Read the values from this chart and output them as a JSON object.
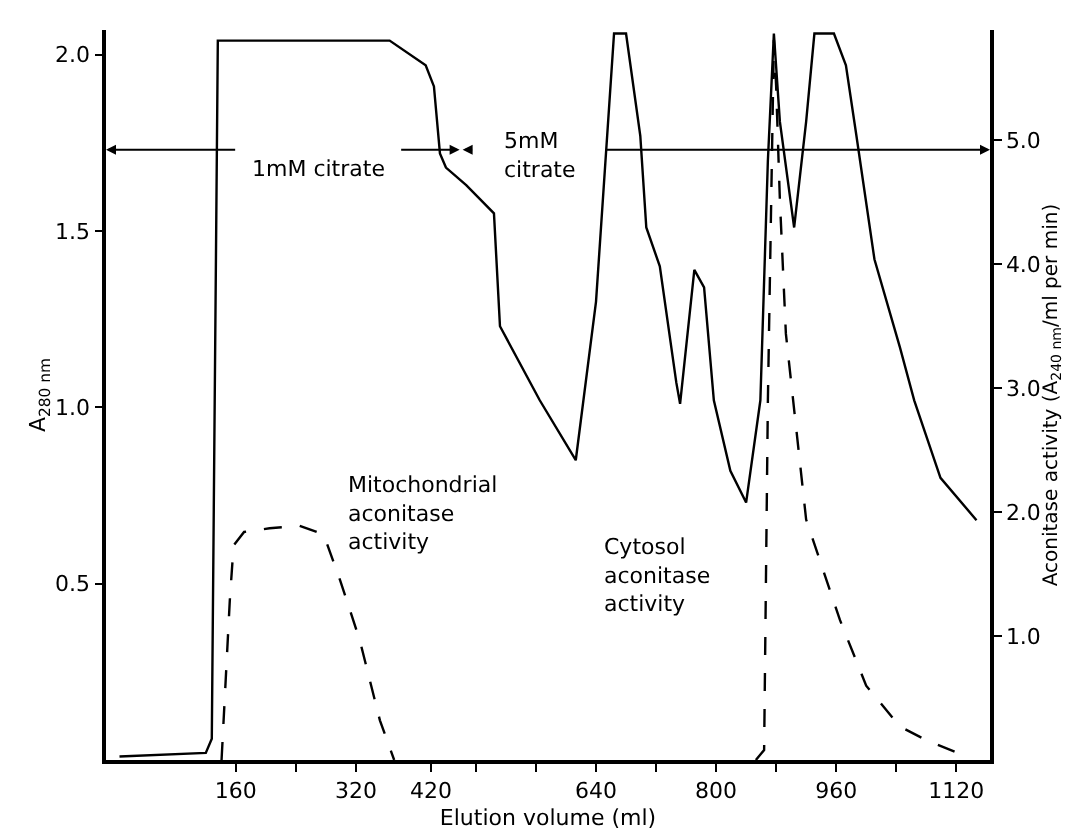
{
  "chart_data": {
    "type": "line",
    "xlabel": "Elution volume (ml)",
    "ylabel": "A$_{280 nm}$",
    "y2label": "Aconitase activity (A$_{240 nm}$/ml per min)",
    "xlim": [
      -13,
      1165
    ],
    "ylim": [
      0,
      2.07
    ],
    "y2lim": [
      0,
      5.89
    ],
    "xticks": [
      160,
      {
        "value": 240,
        "label": null
      },
      320,
      420,
      {
        "value": 480,
        "label": null
      },
      {
        "value": 560,
        "label": null
      },
      640,
      {
        "value": 720,
        "label": null
      },
      800,
      {
        "value": 880,
        "label": null
      },
      960,
      {
        "value": 1040,
        "label": null
      },
      1120
    ],
    "yticks": [
      0.5,
      {
        "value": 1,
        "label": "1.0"
      },
      1.5,
      {
        "value": 2,
        "label": "2.0"
      }
    ],
    "y2ticks": [
      {
        "value": 1,
        "label": "1.0"
      },
      {
        "value": 2,
        "label": "2.0"
      },
      {
        "value": 3,
        "label": "3.0"
      },
      {
        "value": 4,
        "label": "4.0"
      },
      {
        "value": 5,
        "label": "5.0"
      }
    ],
    "marker": "none",
    "series": [
      {
        "color": "#000000",
        "line_style": "solid",
        "x": [
          5,
          120,
          128,
          136,
          365,
          413,
          424,
          432,
          440,
          467,
          504,
          512,
          565,
          613,
          640,
          664,
          680,
          699,
          707,
          725,
          747,
          752,
          771,
          784,
          797,
          819,
          840,
          859,
          869,
          877,
          885,
          904,
          920,
          931,
          957,
          973,
          987,
          1011,
          1045,
          1064,
          1099,
          1147
        ],
        "values": [
          0.01,
          0.02,
          0.06,
          2.04,
          2.04,
          1.97,
          1.91,
          1.72,
          1.68,
          1.63,
          1.55,
          1.23,
          1.02,
          0.85,
          1.3,
          2.06,
          2.06,
          1.77,
          1.51,
          1.4,
          1.07,
          1.01,
          1.39,
          1.34,
          1.02,
          0.82,
          0.73,
          1.02,
          1.7,
          2.06,
          1.81,
          1.51,
          1.81,
          2.06,
          2.06,
          1.97,
          1.77,
          1.42,
          1.17,
          1.02,
          0.8,
          0.68
        ]
      },
      {
        "color": "#000000",
        "line_style": "dashed",
        "axis": "y2",
        "x": [
          141,
          152,
          157,
          171,
          205,
          245,
          277,
          299,
          325,
          352,
          371
        ],
        "values": [
          0.0,
          1.29,
          1.73,
          1.84,
          1.87,
          1.89,
          1.82,
          1.45,
          0.97,
          0.32,
          0.0
        ]
      },
      {
        "color": "#000000",
        "line_style": "dashed",
        "axis": "y2",
        "x": [
          853,
          864,
          869,
          877,
          880,
          885,
          893,
          920,
          965,
          1000,
          1045,
          1080,
          1125
        ],
        "values": [
          0.0,
          0.08,
          2.9,
          5.81,
          5.44,
          4.52,
          3.44,
          1.94,
          1.13,
          0.6,
          0.27,
          0.16,
          0.05
        ]
      }
    ],
    "annotations": [
      "1mM citrate",
      "5mM\ncitrate",
      "Mitochondrial\naconitase\nactivity",
      "Cytosol\naconitase\nactivity"
    ]
  }
}
